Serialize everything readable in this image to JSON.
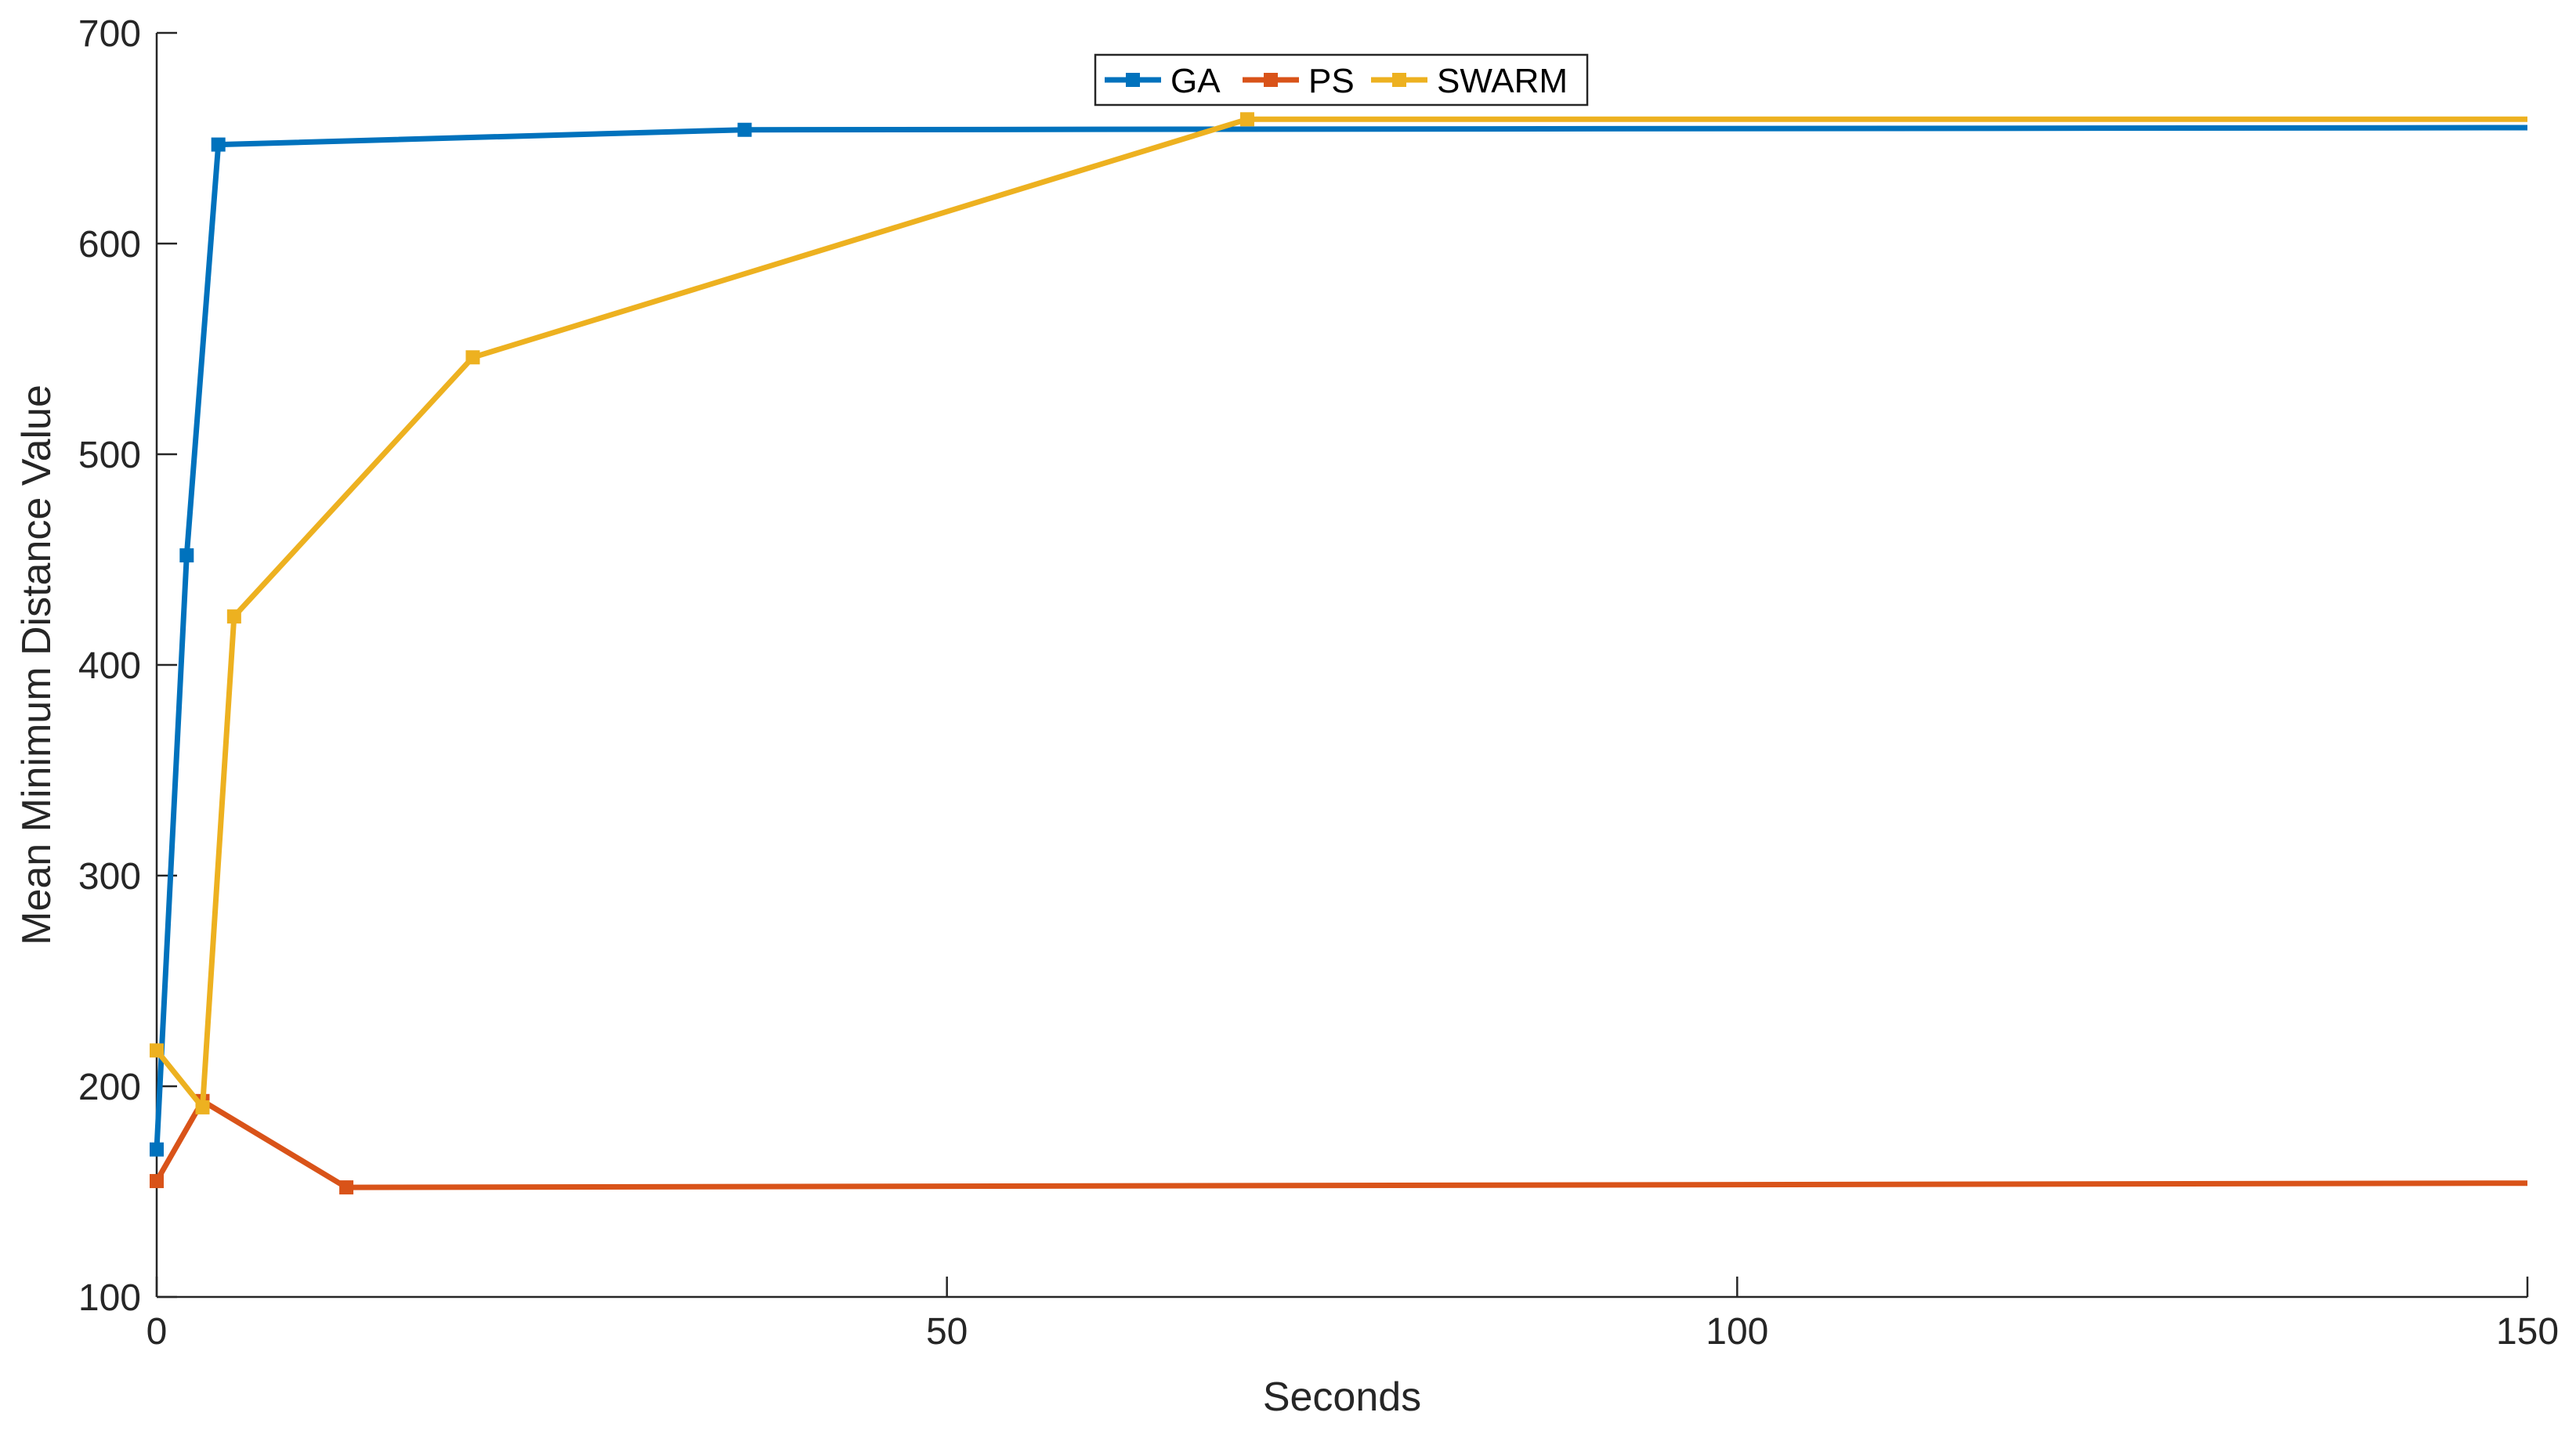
{
  "chart_data": {
    "type": "line",
    "title": "",
    "xlabel": "Seconds",
    "ylabel": "Mean Minimum Distance Value",
    "xlim": [
      0,
      150
    ],
    "ylim": [
      100,
      700
    ],
    "xticks": [
      0,
      50,
      100,
      150
    ],
    "yticks": [
      100,
      200,
      300,
      400,
      500,
      600,
      700
    ],
    "grid": false,
    "legend": {
      "position": "top-center",
      "orientation": "horizontal"
    },
    "series": [
      {
        "name": "GA",
        "color": "#0072BD",
        "marker": "square",
        "x": [
          0,
          1.9,
          3.9,
          37.2,
          150
        ],
        "y": [
          170,
          452,
          647,
          654,
          655
        ]
      },
      {
        "name": "PS",
        "color": "#D95319",
        "marker": "square",
        "x": [
          0,
          2.9,
          12,
          150
        ],
        "y": [
          155,
          193,
          152,
          154
        ]
      },
      {
        "name": "SWARM",
        "color": "#EDB120",
        "marker": "square",
        "x": [
          0,
          2.9,
          4.9,
          20,
          69,
          150
        ],
        "y": [
          217,
          190,
          423,
          546,
          659,
          659
        ]
      }
    ]
  }
}
